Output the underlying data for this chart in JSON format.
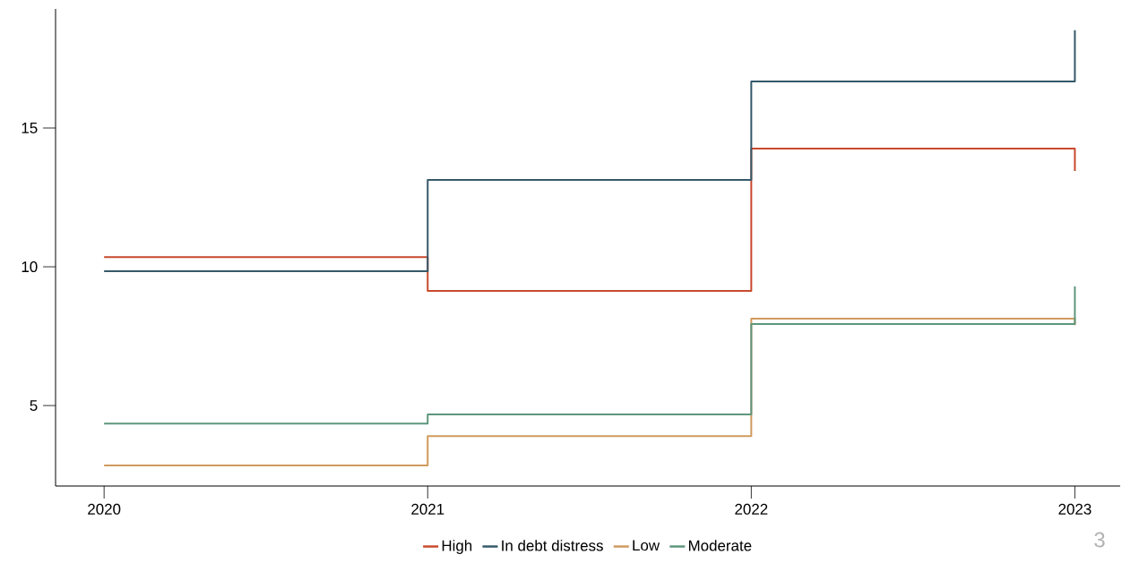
{
  "chart_data": {
    "type": "step",
    "x": [
      2020,
      2021,
      2022,
      2023
    ],
    "series": [
      {
        "name": "High",
        "color": "#c8492b",
        "values": [
          10.35,
          9.13,
          14.26,
          13.45
        ]
      },
      {
        "name": "In debt distress",
        "color": "#35596a",
        "values": [
          9.84,
          13.13,
          16.68,
          18.52
        ]
      },
      {
        "name": "Low",
        "color": "#d09a5e",
        "values": [
          2.84,
          3.9,
          8.13,
          7.9
        ]
      },
      {
        "name": "Moderate",
        "color": "#5e967c",
        "values": [
          4.35,
          4.68,
          7.94,
          9.29
        ]
      }
    ],
    "xlim": [
      2019.85,
      2023.14
    ],
    "xticks": [
      2020,
      2021,
      2022,
      2023
    ],
    "ylim": [
      2.1,
      19.29
    ],
    "yticks": [
      5,
      10,
      15
    ],
    "legend": "bottom",
    "marker": "none",
    "line_style": "solid",
    "annotations": [
      "3"
    ]
  }
}
